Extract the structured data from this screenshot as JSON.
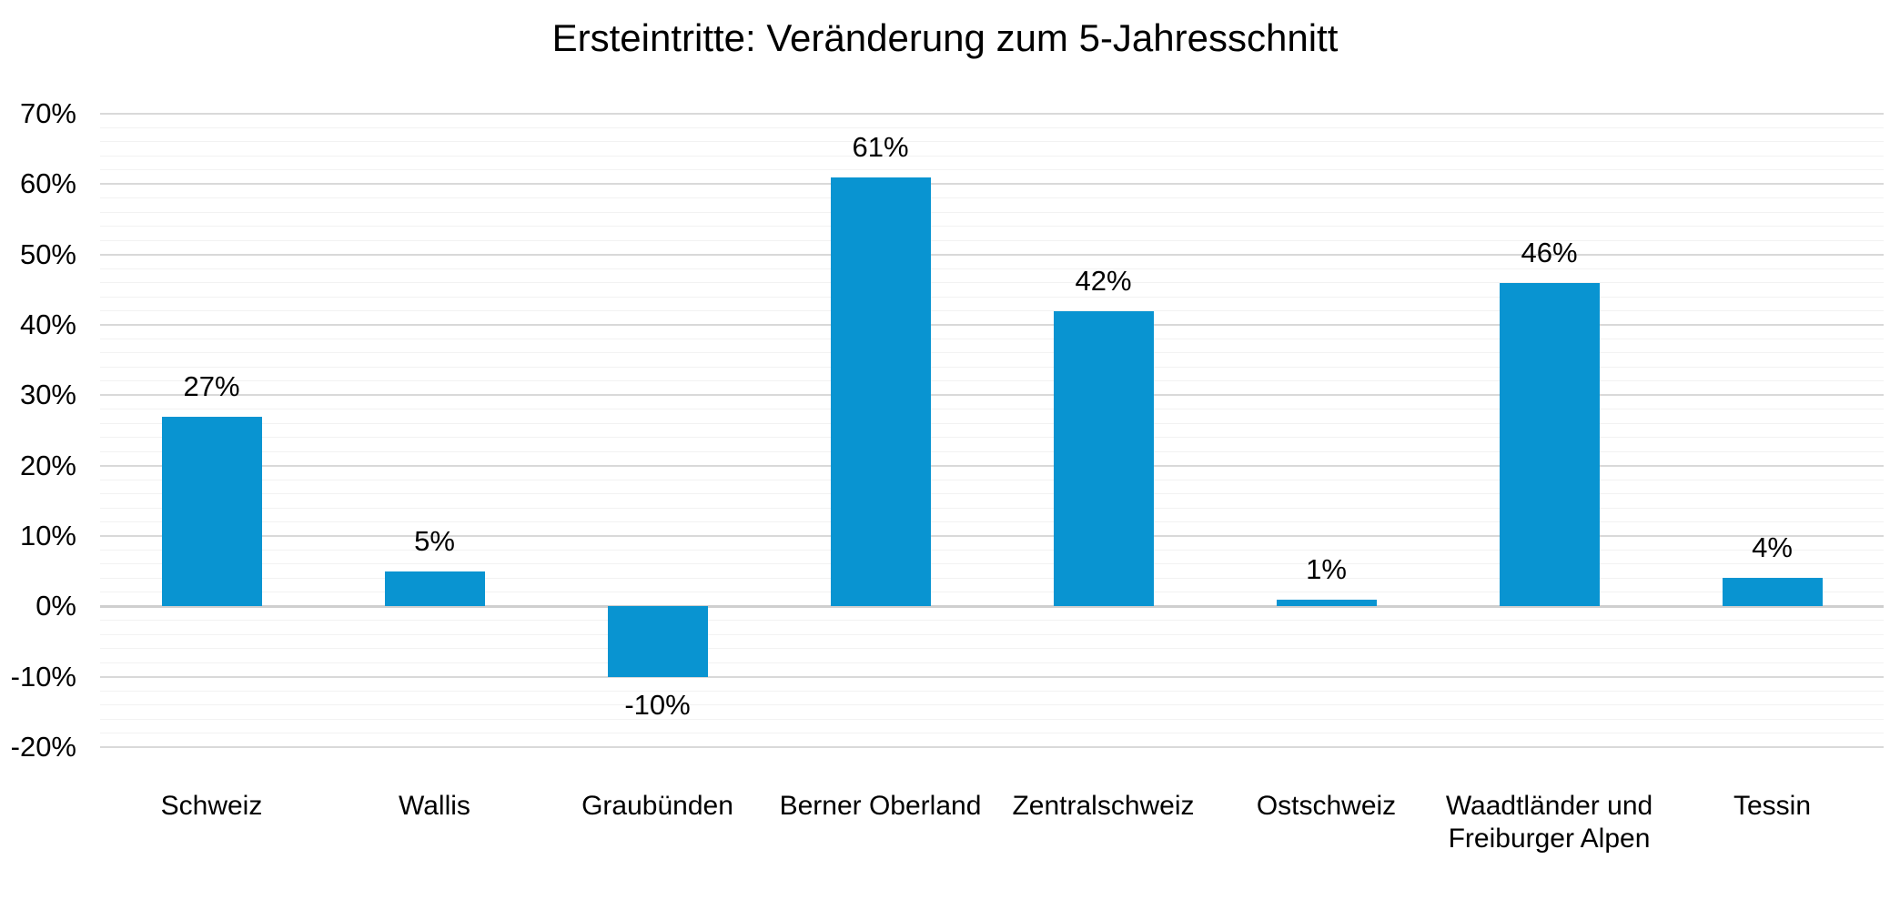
{
  "chart_data": {
    "type": "bar",
    "title": "Ersteintritte: Veränderung zum 5-Jahresschnitt",
    "categories": [
      "Schweiz",
      "Wallis",
      "Graubünden",
      "Berner Oberland",
      "Zentralschweiz",
      "Ostschweiz",
      "Waadtländer und\nFreiburger Alpen",
      "Tessin"
    ],
    "values": [
      27,
      5,
      -10,
      61,
      42,
      1,
      46,
      4
    ],
    "data_labels": [
      "27%",
      "5%",
      "-10%",
      "61%",
      "42%",
      "1%",
      "46%",
      "4%"
    ],
    "xlabel": "",
    "ylabel": "",
    "ylim": [
      -20,
      70
    ],
    "y_major_unit": 10,
    "y_minor_unit": 2,
    "y_tick_labels": [
      "70%",
      "60%",
      "50%",
      "40%",
      "30%",
      "20%",
      "10%",
      "0%",
      "-10%",
      "-20%"
    ],
    "grid": "horizontal major+minor",
    "legend": "none",
    "colors": {
      "bar": "#0994D1",
      "major_gridline": "#D9D9D9",
      "minor_gridline": "#F2F2F2",
      "zero_line": "#CFCFCF",
      "text": "#000000",
      "background": "#FFFFFF"
    }
  }
}
